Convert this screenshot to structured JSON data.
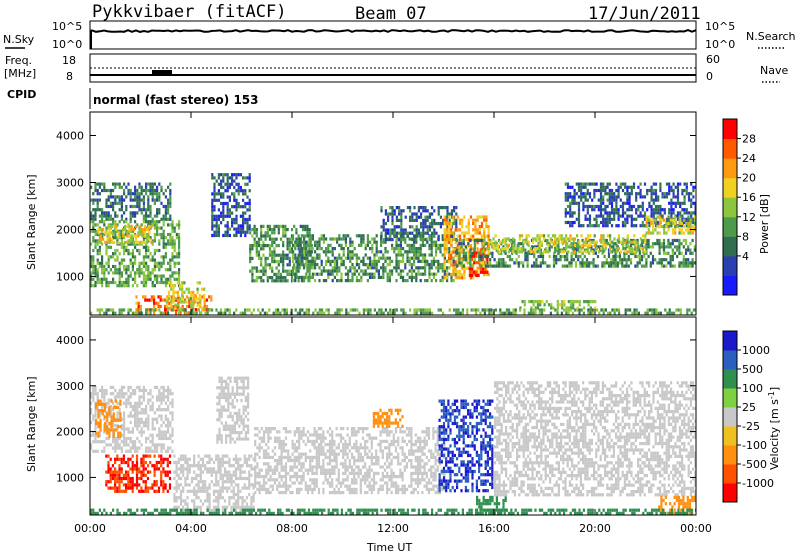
{
  "header": {
    "radar": "Pykkvibaer (fitACF)",
    "beam": "Beam 07",
    "date": "17/Jun/2011"
  },
  "top_panels": {
    "nsky_label": "N.Sky",
    "nsky_ticks": [
      "10^5",
      "10^0"
    ],
    "nsearch_label": "N.Search",
    "nsearch_ticks": [
      "10^5",
      "10^0"
    ],
    "freq_label_1": "Freq.",
    "freq_label_2": "[MHz]",
    "freq_ticks": [
      "18",
      "8"
    ],
    "nave_label": "Nave",
    "nave_ticks": [
      "60",
      "0"
    ],
    "cpid_label": "CPID",
    "cpid_text": "normal (fast stereo) 153"
  },
  "axes": {
    "ylabel": "Slant Range [km]",
    "xlabel": "Time UT",
    "y_ticks": [
      "4000",
      "3000",
      "2000",
      "1000"
    ],
    "x_ticks": [
      "00:00",
      "04:00",
      "08:00",
      "12:00",
      "16:00",
      "20:00",
      "00:00"
    ]
  },
  "power_scale": {
    "label": "Power [dB]",
    "ticks": [
      "28",
      "24",
      "20",
      "16",
      "12",
      "8",
      "4"
    ],
    "colors": [
      "#1a1aff",
      "#2a3fb0",
      "#2f6f4f",
      "#4c9a4c",
      "#8cc63f",
      "#f0d020",
      "#ff9a10",
      "#ff5a00",
      "#ff0000"
    ]
  },
  "velocity_scale": {
    "label": "Velocity [m s^-1]",
    "ticks": [
      "1000",
      "500",
      "100",
      "25",
      "-25",
      "-100",
      "-500",
      "-1000"
    ],
    "colors": [
      "#1a1acc",
      "#2a5fc0",
      "#2f8f4f",
      "#7fd040",
      "#c8c8c8",
      "#f0c020",
      "#ff9010",
      "#ff5000",
      "#ff0000"
    ]
  },
  "chart_data": [
    {
      "type": "heatmap",
      "title": "Power",
      "xlabel": "Time UT",
      "ylabel": "Slant Range [km]",
      "xlim": [
        0,
        24
      ],
      "ylim": [
        180,
        4500
      ],
      "colorbar_label": "Power [dB]",
      "colorbar_ticks": [
        4,
        8,
        12,
        16,
        20,
        24,
        28
      ],
      "features": [
        {
          "t0": 0.0,
          "t1": 3.2,
          "r0": 2200,
          "r1": 3000,
          "level": 10
        },
        {
          "t0": 0.0,
          "t1": 3.5,
          "r0": 800,
          "r1": 2200,
          "level": 14
        },
        {
          "t0": 0.3,
          "t1": 2.4,
          "r0": 1700,
          "r1": 2100,
          "level": 19
        },
        {
          "t0": 1.8,
          "t1": 4.8,
          "r0": 200,
          "r1": 600,
          "level": 25
        },
        {
          "t0": 3.0,
          "t1": 4.5,
          "r0": 300,
          "r1": 900,
          "level": 18
        },
        {
          "t0": 4.8,
          "t1": 6.3,
          "r0": 1900,
          "r1": 3200,
          "level": 8
        },
        {
          "t0": 6.3,
          "t1": 8.8,
          "r0": 900,
          "r1": 2100,
          "level": 12
        },
        {
          "t0": 8.0,
          "t1": 14.5,
          "r0": 900,
          "r1": 1900,
          "level": 12
        },
        {
          "t0": 11.5,
          "t1": 14.5,
          "r0": 1800,
          "r1": 2500,
          "level": 9
        },
        {
          "t0": 14.0,
          "t1": 15.8,
          "r0": 1000,
          "r1": 2300,
          "level": 22
        },
        {
          "t0": 15.0,
          "t1": 15.7,
          "r0": 1000,
          "r1": 1600,
          "level": 27
        },
        {
          "t0": 14.5,
          "t1": 24.0,
          "r0": 1200,
          "r1": 1800,
          "level": 12
        },
        {
          "t0": 15.5,
          "t1": 22.0,
          "r0": 1500,
          "r1": 1900,
          "level": 18
        },
        {
          "t0": 18.8,
          "t1": 24.0,
          "r0": 2100,
          "r1": 3000,
          "level": 8
        },
        {
          "t0": 22.0,
          "t1": 24.0,
          "r0": 1900,
          "r1": 2300,
          "level": 18
        },
        {
          "t0": 17.0,
          "t1": 20.0,
          "r0": 300,
          "r1": 500,
          "level": 16
        },
        {
          "t0": 0.0,
          "t1": 24.0,
          "r0": 180,
          "r1": 320,
          "level": 14
        }
      ]
    },
    {
      "type": "heatmap",
      "title": "Velocity",
      "xlabel": "Time UT",
      "ylabel": "Slant Range [km]",
      "xlim": [
        0,
        24
      ],
      "ylim": [
        180,
        4500
      ],
      "colorbar_label": "Velocity [m s^-1]",
      "colorbar_ticks": [
        -1000,
        -500,
        -100,
        -25,
        25,
        100,
        500,
        1000
      ],
      "features": [
        {
          "t0": 0.0,
          "t1": 3.3,
          "r0": 1600,
          "r1": 3000,
          "level": 0
        },
        {
          "t0": 0.2,
          "t1": 1.2,
          "r0": 1900,
          "r1": 2700,
          "level": -150
        },
        {
          "t0": 0.6,
          "t1": 3.2,
          "r0": 700,
          "r1": 1500,
          "level": -700
        },
        {
          "t0": 3.3,
          "t1": 6.5,
          "r0": 300,
          "r1": 1500,
          "level": 0
        },
        {
          "t0": 5.0,
          "t1": 6.3,
          "r0": 1800,
          "r1": 3200,
          "level": 0
        },
        {
          "t0": 6.5,
          "t1": 14.0,
          "r0": 700,
          "r1": 2100,
          "level": 0
        },
        {
          "t0": 11.2,
          "t1": 12.4,
          "r0": 2100,
          "r1": 2500,
          "level": -150
        },
        {
          "t0": 13.8,
          "t1": 15.9,
          "r0": 700,
          "r1": 2700,
          "level": 700
        },
        {
          "t0": 15.2,
          "t1": 16.5,
          "r0": 250,
          "r1": 600,
          "level": 150
        },
        {
          "t0": 16.0,
          "t1": 24.0,
          "r0": 600,
          "r1": 3100,
          "level": 0
        },
        {
          "t0": 22.5,
          "t1": 24.0,
          "r0": 250,
          "r1": 600,
          "level": -150
        },
        {
          "t0": 0.0,
          "t1": 24.0,
          "r0": 180,
          "r1": 320,
          "level": 150
        }
      ]
    },
    {
      "type": "line",
      "title": "N.Sky",
      "ylim": [
        "10^0",
        "10^5"
      ],
      "description_values": {
        "n_sky_log10": 3.9
      }
    },
    {
      "type": "line",
      "title": "Freq. [MHz]",
      "ylim": [
        8,
        18
      ],
      "values": {
        "freq_mhz": 11,
        "nave": 5
      }
    }
  ]
}
